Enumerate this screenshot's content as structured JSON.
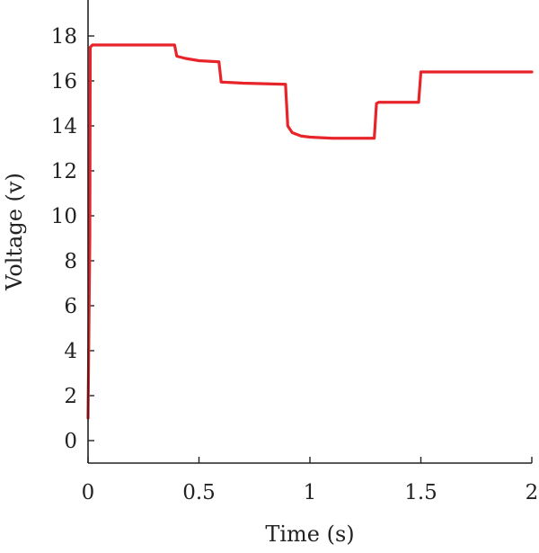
{
  "chart_data": {
    "type": "line",
    "xlabel": "Time (s)",
    "ylabel": "Voltage (v)",
    "xlim": [
      0,
      2
    ],
    "ylim": [
      -1,
      19.6
    ],
    "xticks": [
      0,
      0.5,
      1,
      1.5,
      2
    ],
    "xtick_labels": [
      "0",
      "0.5",
      "1",
      "1.5",
      "2"
    ],
    "yticks": [
      0,
      2,
      4,
      6,
      8,
      10,
      12,
      14,
      16,
      18
    ],
    "ytick_labels": [
      "0",
      "2",
      "4",
      "6",
      "8",
      "10",
      "12",
      "14",
      "16",
      "18"
    ],
    "grid": false,
    "series": [
      {
        "color": "#e8242b",
        "x": [
          0,
          0.008,
          0.01,
          0.02,
          0.39,
          0.4,
          0.44,
          0.5,
          0.59,
          0.6,
          0.7,
          0.89,
          0.9,
          0.92,
          0.96,
          1.0,
          1.1,
          1.2,
          1.29,
          1.3,
          1.31,
          1.4,
          1.49,
          1.5,
          1.6,
          1.8,
          2.0
        ],
        "y": [
          1.0,
          9.0,
          17.5,
          17.6,
          17.6,
          17.1,
          17.0,
          16.9,
          16.85,
          15.95,
          15.9,
          15.85,
          14.0,
          13.7,
          13.55,
          13.5,
          13.45,
          13.45,
          13.45,
          15.0,
          15.05,
          15.05,
          15.05,
          16.4,
          16.4,
          16.4,
          16.4
        ]
      }
    ]
  }
}
